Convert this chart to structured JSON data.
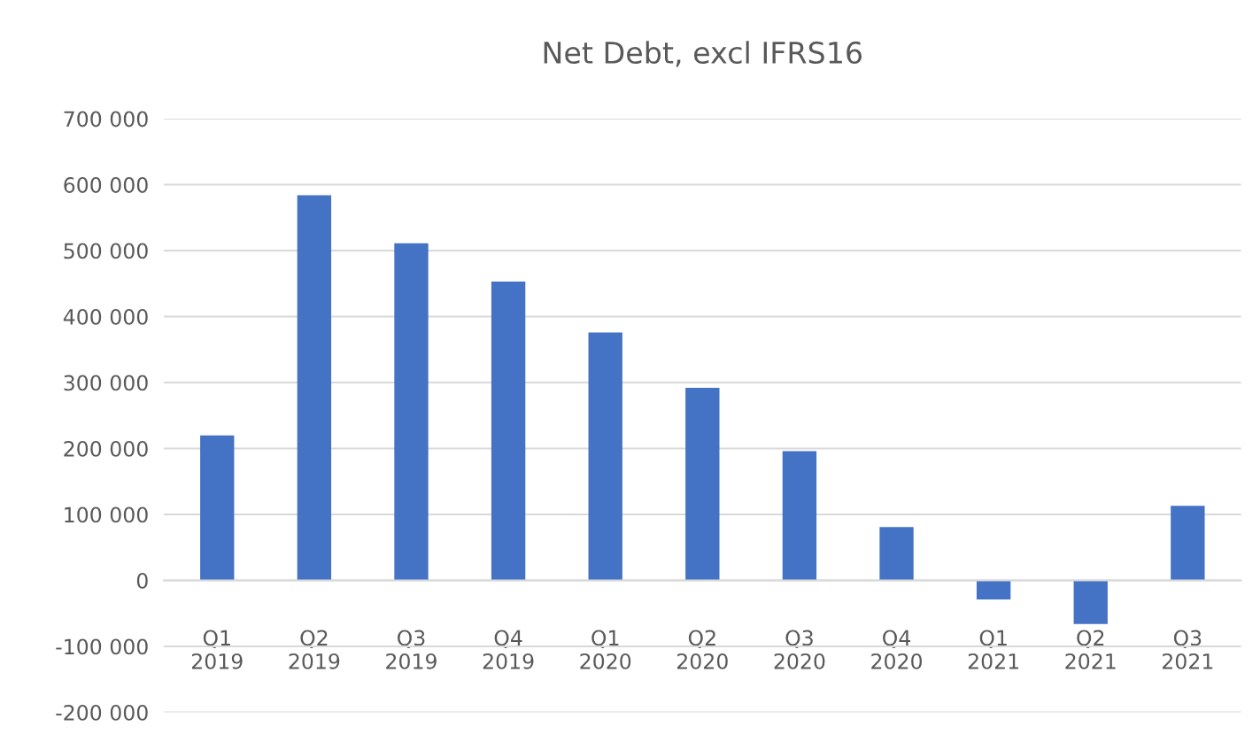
{
  "chart_data": {
    "type": "bar",
    "title": "Net Debt, excl IFRS16",
    "categories": [
      "Q1\n2019",
      "Q2\n2019",
      "Q3\n2019",
      "Q4\n2019",
      "Q1\n2020",
      "Q2\n2020",
      "Q3\n2020",
      "Q4\n2020",
      "Q1\n2021",
      "Q2\n2021",
      "Q3\n2021"
    ],
    "values": [
      220000,
      584000,
      511000,
      453000,
      376000,
      292000,
      196000,
      81000,
      -29000,
      -66000,
      113000
    ],
    "color": "#4472c4",
    "ylim": [
      -200000,
      700000
    ],
    "yticks": [
      {
        "value": -200000,
        "label": "-200 000"
      },
      {
        "value": -100000,
        "label": "-100 000"
      },
      {
        "value": 0,
        "label": "0"
      },
      {
        "value": 100000,
        "label": "100 000"
      },
      {
        "value": 200000,
        "label": "200 000"
      },
      {
        "value": 300000,
        "label": "300 000"
      },
      {
        "value": 400000,
        "label": "400 000"
      },
      {
        "value": 500000,
        "label": "500 000"
      },
      {
        "value": 600000,
        "label": "600 000"
      },
      {
        "value": 700000,
        "label": "700 000"
      }
    ],
    "grid": "y",
    "legend": false
  }
}
